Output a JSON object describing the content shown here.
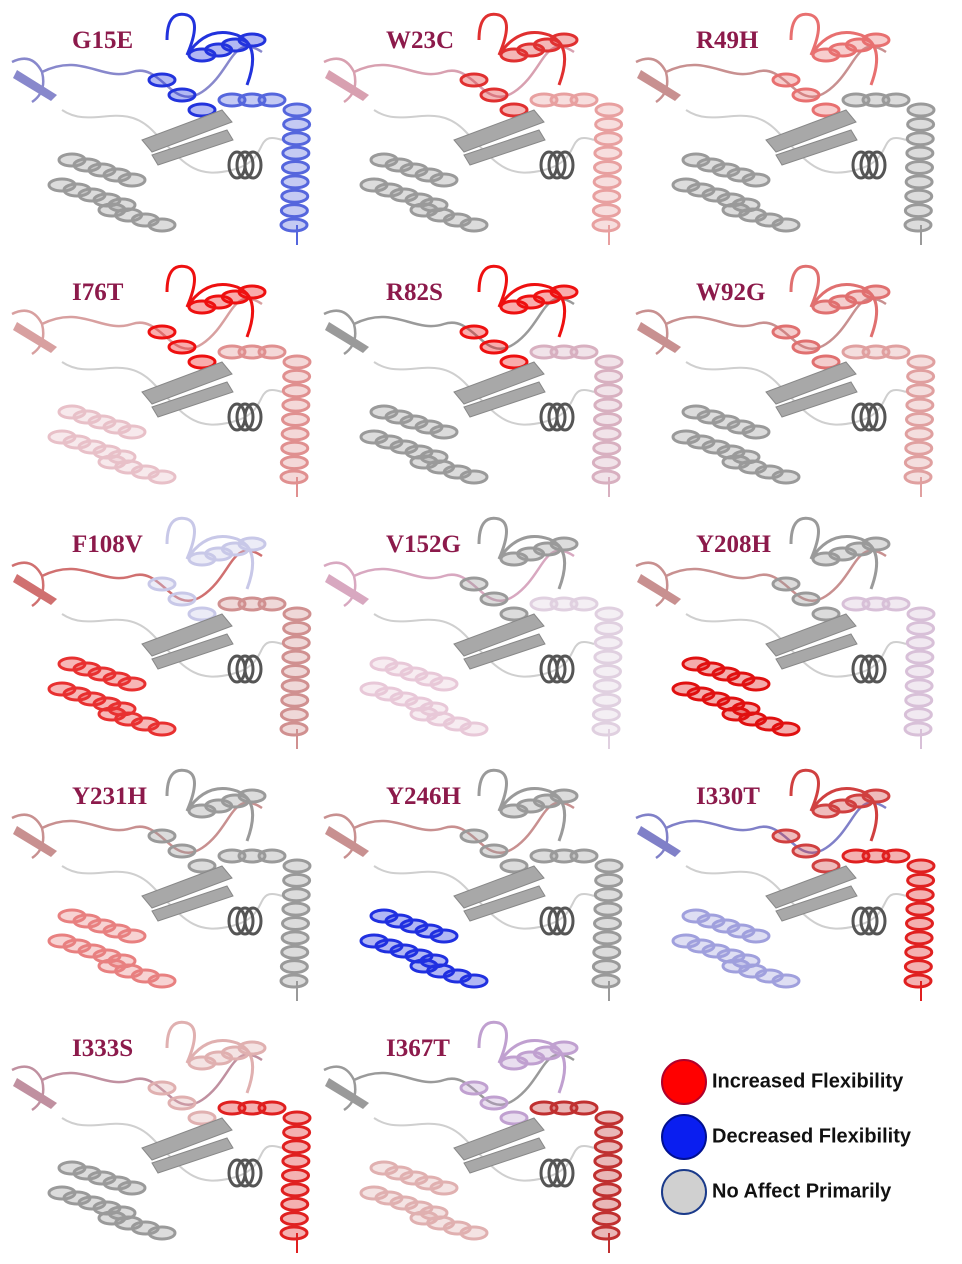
{
  "panels": [
    "G15E",
    "W23C",
    "R49H",
    "I76T",
    "R82S",
    "W92G",
    "F108V",
    "V152G",
    "Y208H",
    "Y231H",
    "Y246H",
    "I330T",
    "I333S",
    "I367T"
  ],
  "legend": [
    "Increased Flexibility",
    "Decreased Flexibility",
    "No Affect Primarily"
  ]
}
